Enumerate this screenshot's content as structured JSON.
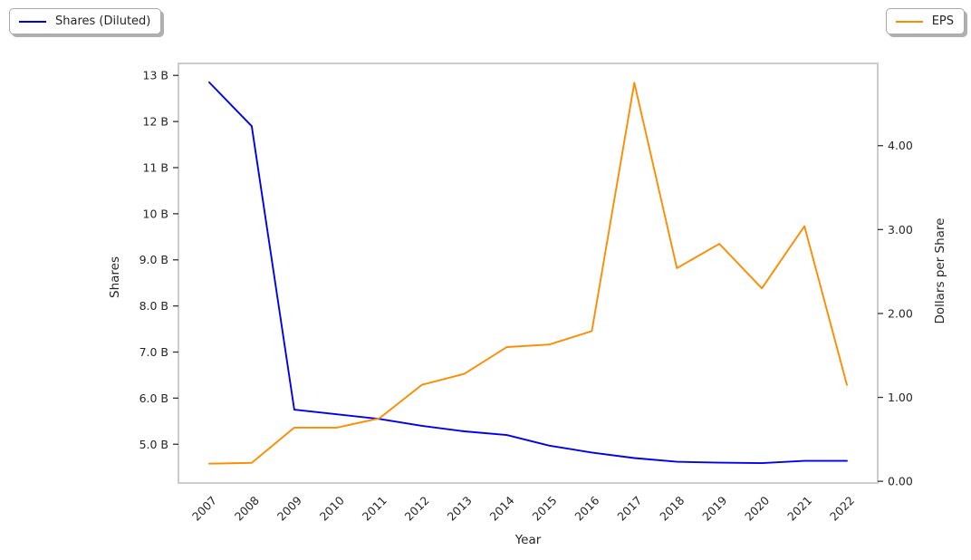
{
  "legends": [
    {
      "label": "Shares (Diluted)",
      "color": "#0000f0"
    },
    {
      "label": "EPS",
      "color": "#ff8c00"
    }
  ],
  "colors": {
    "background": "#ffffff",
    "spine": "#cccccc",
    "tick_mark": "#333333",
    "tick_text": "#262626"
  },
  "chart_data": {
    "type": "line",
    "title": "",
    "xlabel": "Year",
    "grid": false,
    "legend_position": "outside top-left (Shares) and outside top-right (EPS)",
    "x": [
      2007,
      2008,
      2009,
      2010,
      2011,
      2012,
      2013,
      2014,
      2015,
      2016,
      2017,
      2018,
      2019,
      2020,
      2021,
      2022
    ],
    "series": [
      {
        "name": "Shares (Diluted)",
        "axis": "left",
        "color": "#0000f0",
        "values": [
          12.85,
          11.9,
          5.75,
          5.65,
          5.55,
          5.4,
          5.28,
          5.2,
          4.97,
          4.82,
          4.7,
          4.62,
          4.6,
          4.59,
          4.64,
          4.64
        ]
      },
      {
        "name": "EPS",
        "axis": "right",
        "color": "#ff8c00",
        "values": [
          0.21,
          0.22,
          0.64,
          0.64,
          0.75,
          1.15,
          1.28,
          1.6,
          1.63,
          1.79,
          4.75,
          2.54,
          2.83,
          2.3,
          3.04,
          1.15
        ]
      }
    ],
    "left_axis": {
      "label": "Shares",
      "unit": "B",
      "range": [
        4.16,
        13.26
      ],
      "ticks": [
        {
          "value": 13,
          "label": "13 B"
        },
        {
          "value": 12,
          "label": "12 B"
        },
        {
          "value": 11,
          "label": "11 B"
        },
        {
          "value": 10,
          "label": "10 B"
        },
        {
          "value": 9,
          "label": "9.0 B"
        },
        {
          "value": 8,
          "label": "8.0 B"
        },
        {
          "value": 7,
          "label": "7.0 B"
        },
        {
          "value": 6,
          "label": "6.0 B"
        },
        {
          "value": 5,
          "label": "5.0 B"
        }
      ]
    },
    "right_axis": {
      "label": "Dollars per Share",
      "range": [
        -0.02,
        4.98
      ],
      "ticks": [
        {
          "value": 4,
          "label": "4.00"
        },
        {
          "value": 3,
          "label": "3.00"
        },
        {
          "value": 2,
          "label": "2.00"
        },
        {
          "value": 1,
          "label": "1.00"
        },
        {
          "value": 0,
          "label": "0.00"
        }
      ]
    }
  }
}
